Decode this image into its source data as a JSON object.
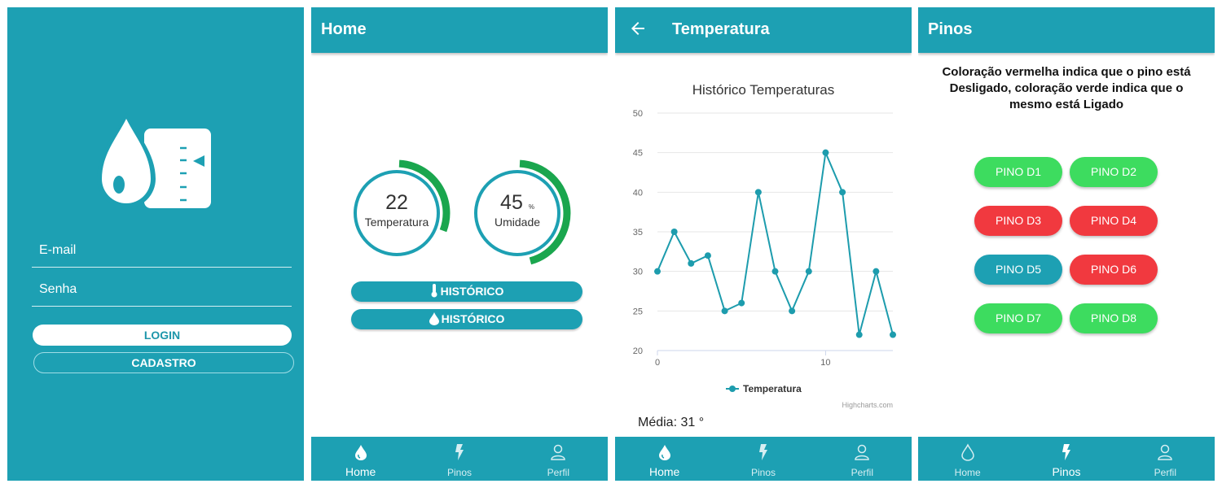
{
  "login": {
    "email_placeholder": "E-mail",
    "password_placeholder": "Senha",
    "login_label": "LOGIN",
    "register_label": "CADASTRO"
  },
  "home": {
    "title": "Home",
    "temperature": {
      "value": "22",
      "label": "Temperatura",
      "level": 0.3
    },
    "humidity": {
      "value": "45",
      "unit": "%",
      "label": "Umidade",
      "level": 0.45
    },
    "history_temp_label": "HISTÓRICO",
    "history_hum_label": "HISTÓRICO"
  },
  "temperature_screen": {
    "title": "Temperatura",
    "average_label": "Média: 31 °"
  },
  "chart_data": {
    "type": "line",
    "title": "Histórico Temperaturas",
    "x": [
      0,
      1,
      2,
      3,
      4,
      5,
      6,
      7,
      8,
      9,
      10,
      11,
      12,
      13,
      14
    ],
    "series": [
      {
        "name": "Temperatura",
        "values": [
          30,
          35,
          31,
          32,
          25,
          26,
          40,
          30,
          25,
          30,
          45,
          40,
          22,
          30,
          22
        ]
      }
    ],
    "ylim": [
      20,
      50
    ],
    "yticks": [
      20,
      25,
      30,
      35,
      40,
      45,
      50
    ],
    "xticks": [
      0,
      10
    ],
    "xlim": [
      0,
      14
    ],
    "grid": true,
    "legend_position": "bottom",
    "credits": "Highcharts.com",
    "color": "#1d9cad"
  },
  "pins_screen": {
    "title": "Pinos",
    "info_line1": "Coloração vermelha indica que o pino está",
    "info_bold1": "Desligado",
    "info_line2": ", coloração verde indica que o",
    "info_line3": "mesmo está ",
    "info_bold2": "Ligado",
    "pins": [
      {
        "label": "PINO D1",
        "color": "#3ddc5f"
      },
      {
        "label": "PINO D2",
        "color": "#3ddc5f"
      },
      {
        "label": "PINO D3",
        "color": "#f1393f"
      },
      {
        "label": "PINO D4",
        "color": "#f1393f"
      },
      {
        "label": "PINO D5",
        "color": "#1da0b3"
      },
      {
        "label": "PINO D6",
        "color": "#f1393f"
      },
      {
        "label": "PINO D7",
        "color": "#3ddc5f"
      },
      {
        "label": "PINO D8",
        "color": "#3ddc5f"
      }
    ]
  },
  "nav": {
    "home_label": "Home",
    "pins_label": "Pinos",
    "profile_label": "Perfil"
  },
  "colors": {
    "primary": "#1da0b3",
    "gauge_green": "#1aa64e",
    "on": "#3ddc5f",
    "off": "#f1393f"
  }
}
